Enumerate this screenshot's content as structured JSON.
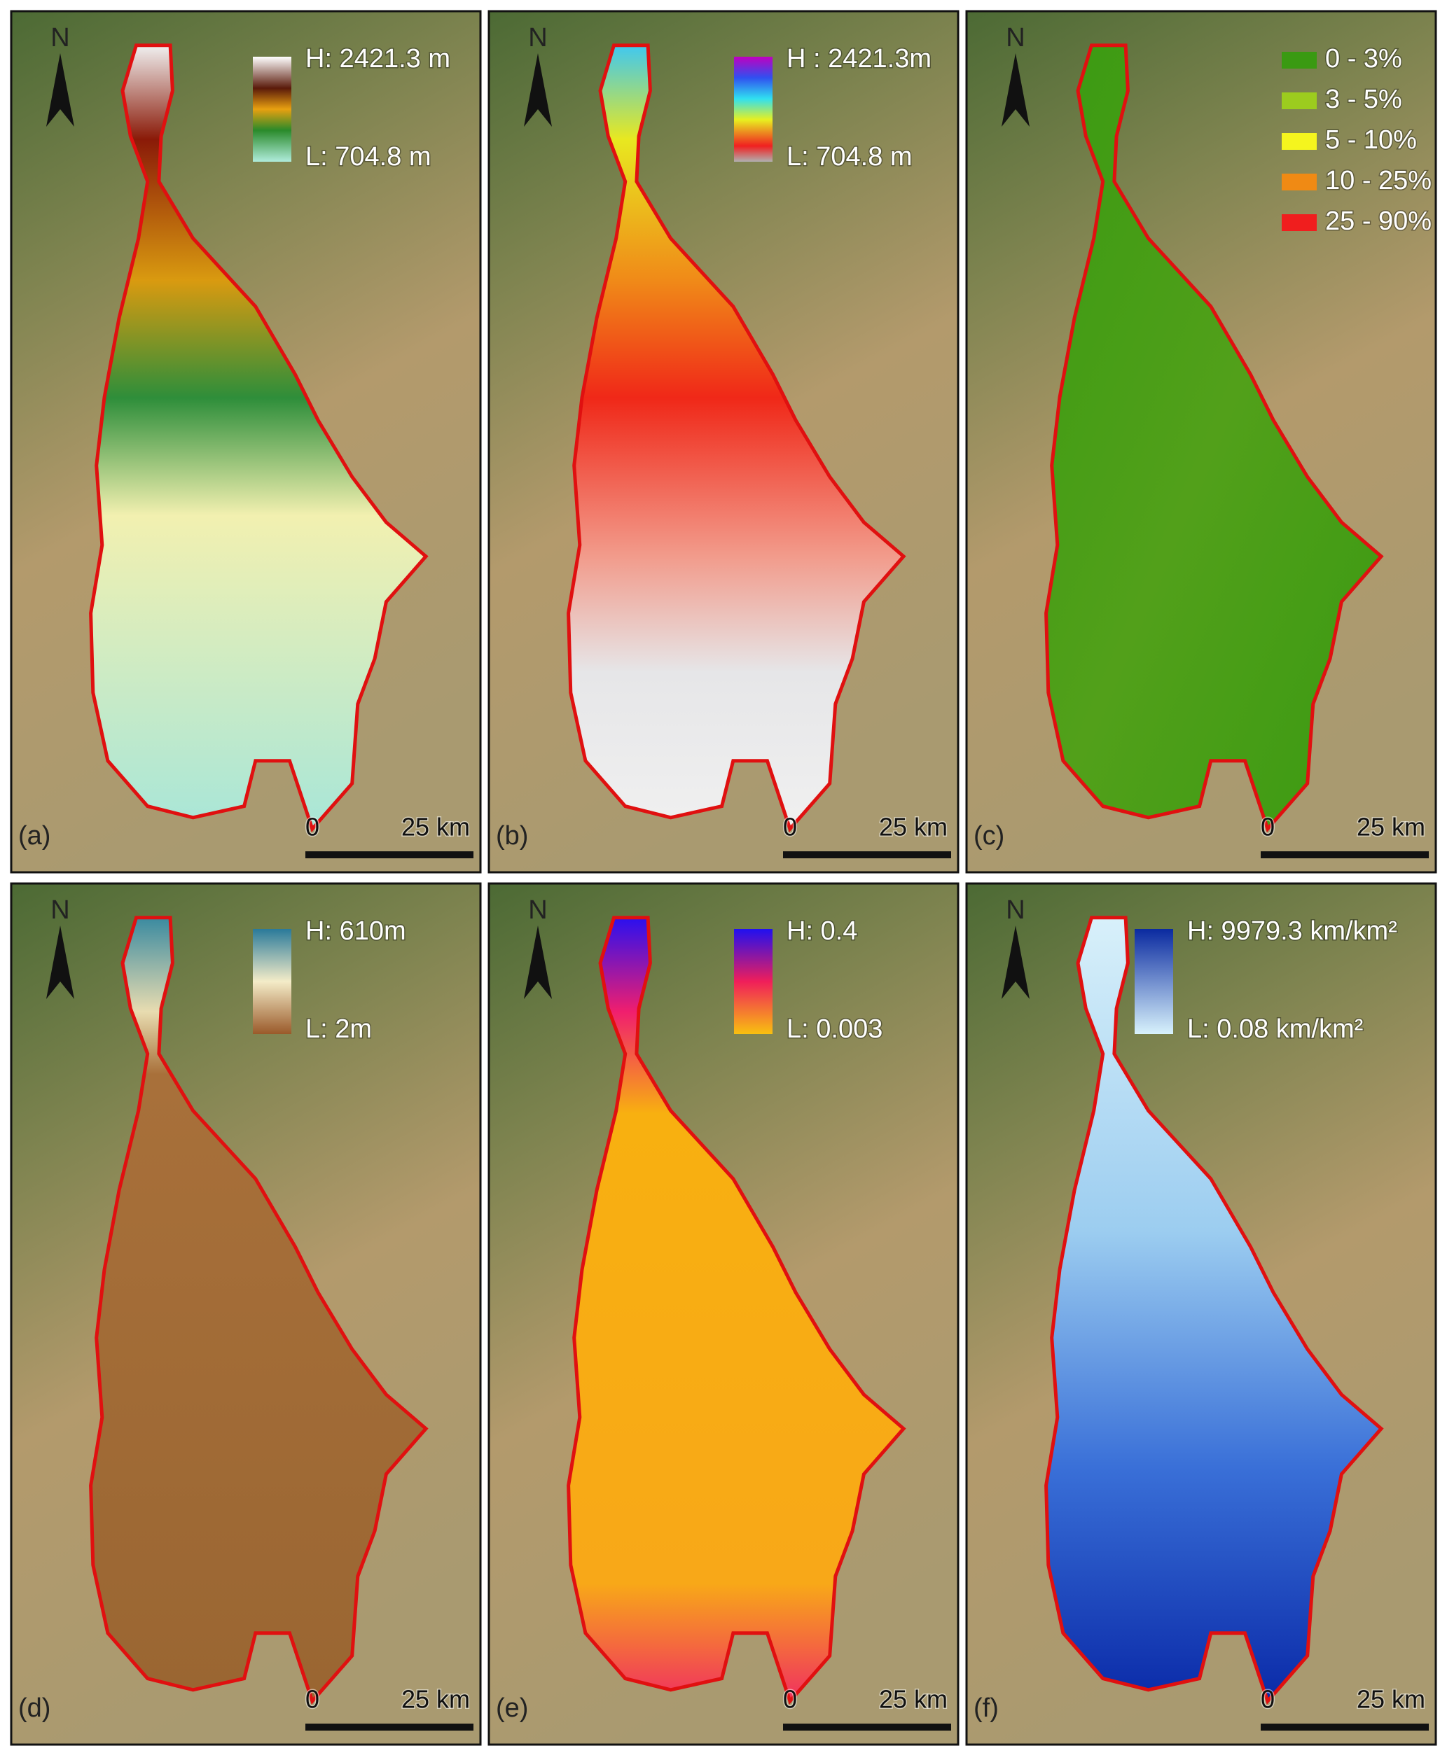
{
  "panels": [
    {
      "label": "(a)",
      "north": "N",
      "legend": {
        "high": "H: 2421.3 m",
        "low": "L: 704.8 m"
      },
      "scale": {
        "start": "0",
        "end": "25 km"
      }
    },
    {
      "label": "(b)",
      "north": "N",
      "legend": {
        "high": "H : 2421.3m",
        "low": "L: 704.8 m"
      },
      "scale": {
        "start": "0",
        "end": "25 km"
      }
    },
    {
      "label": "(c)",
      "north": "N",
      "legend": {
        "classes": [
          {
            "label": "0 - 3%",
            "color": "#3a9a12"
          },
          {
            "label": "3 - 5%",
            "color": "#9ccc1e"
          },
          {
            "label": "5 - 10%",
            "color": "#f5f51e"
          },
          {
            "label": "10 - 25%",
            "color": "#f08a14"
          },
          {
            "label": "25 - 90%",
            "color": "#f01e1e"
          }
        ]
      },
      "scale": {
        "start": "0",
        "end": "25 km"
      }
    },
    {
      "label": "(d)",
      "north": "N",
      "legend": {
        "high": "H: 610m",
        "low": "L: 2m"
      },
      "scale": {
        "start": "0",
        "end": "25 km"
      }
    },
    {
      "label": "(e)",
      "north": "N",
      "legend": {
        "high": "H: 0.4",
        "low": "L: 0.003"
      },
      "scale": {
        "start": "0",
        "end": "25 km"
      }
    },
    {
      "label": "(f)",
      "north": "N",
      "legend": {
        "high": "H: 9979.3 km/km²",
        "low": "L: 0.08  km/km²"
      },
      "scale": {
        "start": "0",
        "end": "25 km"
      }
    }
  ]
}
